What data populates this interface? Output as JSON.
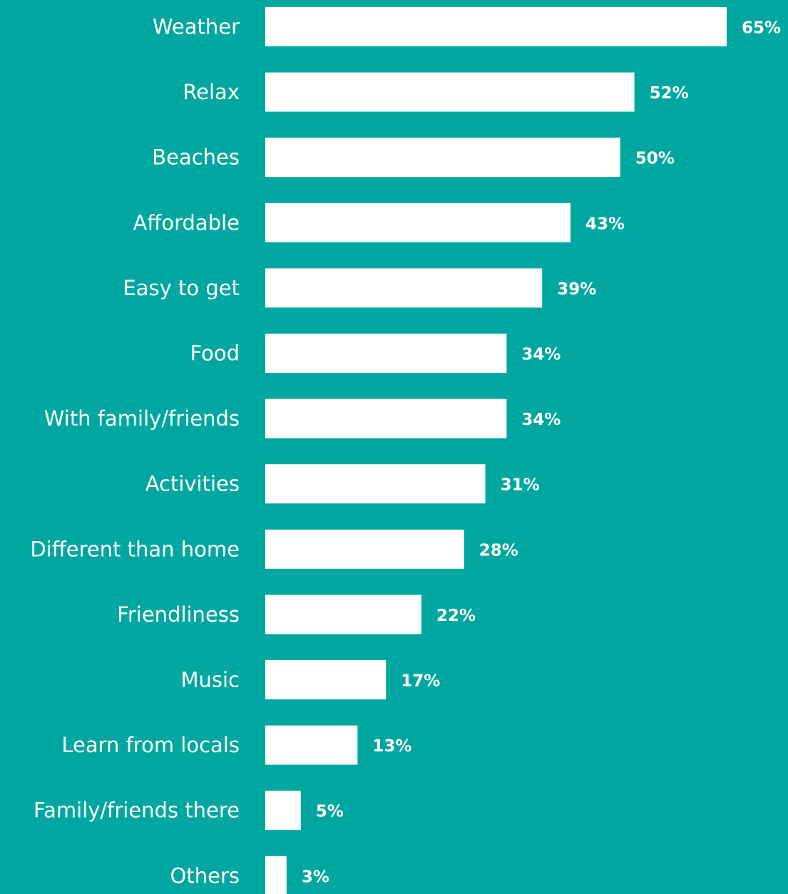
{
  "colors": {
    "background": "#00a7a0",
    "bar": "#ffffff",
    "text": "#ffffff"
  },
  "chart_data": {
    "type": "bar",
    "orientation": "horizontal",
    "title": "",
    "xlabel": "",
    "ylabel": "",
    "grid": false,
    "legend": "none",
    "xlim": [
      0,
      65
    ],
    "value_suffix": "%",
    "categories": [
      "Weather",
      "Relax",
      "Beaches",
      "Affordable",
      "Easy to get",
      "Food",
      "With family/friends",
      "Activities",
      "Different than home",
      "Friendliness",
      "Music",
      "Learn from locals",
      "Family/friends there",
      "Others"
    ],
    "values": [
      65,
      52,
      50,
      43,
      39,
      34,
      34,
      31,
      28,
      22,
      17,
      13,
      5,
      3
    ],
    "value_labels": [
      "65%",
      "52%",
      "50%",
      "43%",
      "39%",
      "34%",
      "34%",
      "31%",
      "28%",
      "22%",
      "17%",
      "13%",
      "5%",
      "3%"
    ]
  }
}
